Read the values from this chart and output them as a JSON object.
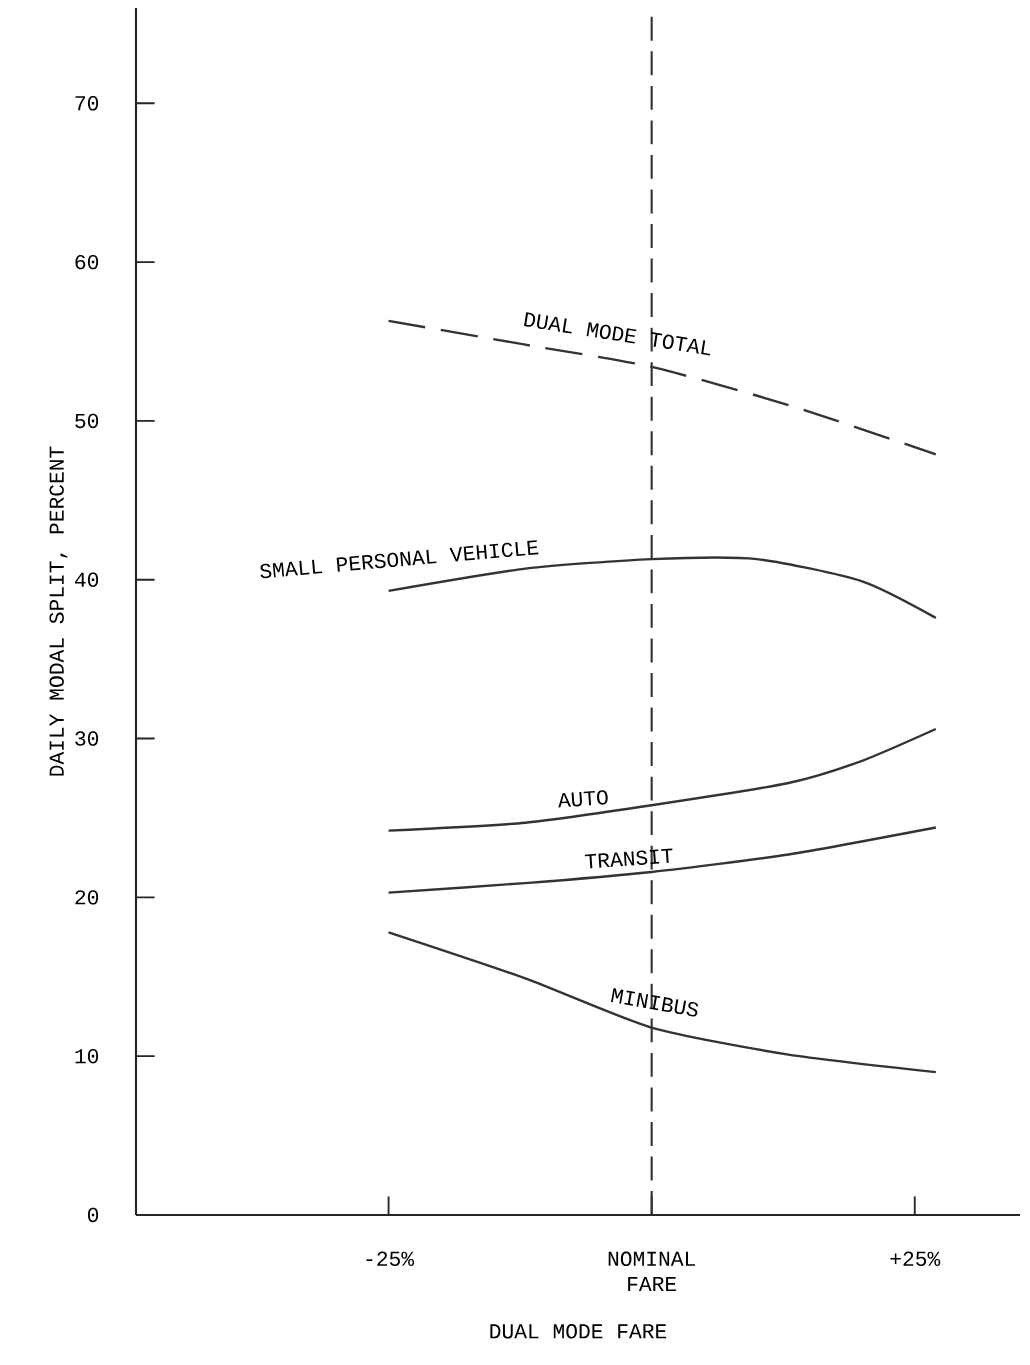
{
  "chart_data": {
    "type": "line",
    "xlabel": "DUAL MODE FARE",
    "ylabel": "DAILY MODAL SPLIT, PERCENT",
    "xlim": [
      -49,
      35
    ],
    "ylim": [
      0,
      76
    ],
    "xticks": [
      {
        "value": -25,
        "label": "-25%"
      },
      {
        "value": 0,
        "label": "NOMINAL FARE"
      },
      {
        "value": 25,
        "label": "+25%"
      }
    ],
    "yticks": [
      0,
      10,
      20,
      30,
      40,
      50,
      60,
      70
    ],
    "grid": false,
    "ref_lines": [
      {
        "axis": "x",
        "value": 0,
        "line_style": "dashed",
        "color": "#333333"
      }
    ],
    "series": [
      {
        "name": "DUAL MODE TOTAL",
        "color": "#333333",
        "line_style": "dashed",
        "x": [
          -25,
          -12,
          0,
          13,
          27
        ],
        "values": [
          56.3,
          54.8,
          53.4,
          51.0,
          47.9
        ]
      },
      {
        "name": "SMALL PERSONAL VEHICLE",
        "color": "#333333",
        "line_style": "solid",
        "x": [
          -25,
          -12,
          0,
          10,
          20,
          27
        ],
        "values": [
          39.3,
          40.7,
          41.3,
          41.3,
          39.9,
          37.6
        ]
      },
      {
        "name": "AUTO",
        "color": "#333333",
        "line_style": "solid",
        "x": [
          -25,
          -12,
          0,
          13,
          20,
          27
        ],
        "values": [
          24.2,
          24.7,
          25.8,
          27.2,
          28.6,
          30.6
        ]
      },
      {
        "name": "TRANSIT",
        "color": "#333333",
        "line_style": "solid",
        "x": [
          -25,
          -12,
          0,
          13,
          27
        ],
        "values": [
          20.3,
          20.9,
          21.6,
          22.7,
          24.4
        ]
      },
      {
        "name": "MINIBUS",
        "color": "#333333",
        "line_style": "solid",
        "x": [
          -25,
          -12,
          0,
          13,
          27
        ],
        "values": [
          17.8,
          14.9,
          11.8,
          10.1,
          9.0
        ]
      }
    ]
  }
}
